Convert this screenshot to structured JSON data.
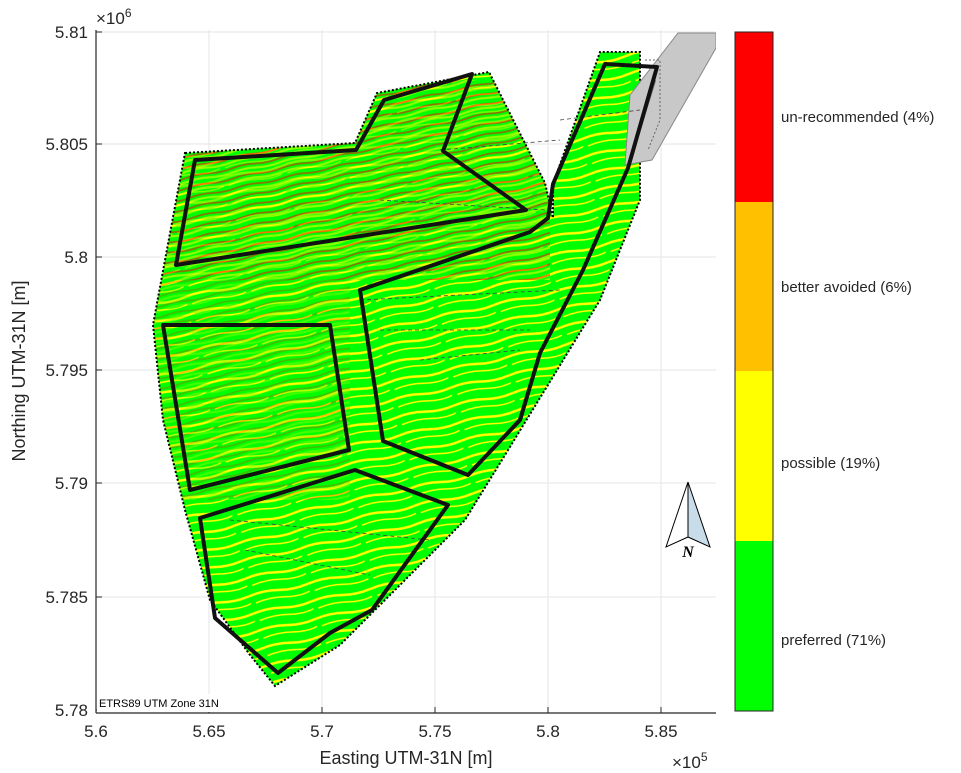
{
  "map": {
    "x_exponent_label": "×10",
    "x_exponent_power": "5",
    "y_exponent_label": "×10",
    "y_exponent_power": "6",
    "xlabel": "Easting UTM-31N [m]",
    "ylabel": "Northing UTM-31N [m]",
    "x_ticks": [
      "5.6",
      "5.65",
      "5.7",
      "5.75",
      "5.8",
      "5.85"
    ],
    "y_ticks": [
      "5.81",
      "5.805",
      "5.8",
      "5.795",
      "5.79",
      "5.785",
      "5.78"
    ],
    "crs_label": "ETRS89 UTM Zone 31N",
    "north_label": "N",
    "grid": true
  },
  "legend": {
    "items": [
      {
        "label": "un-recommended (4%)",
        "color": "#ff0000"
      },
      {
        "label": "better avoided (6%)",
        "color": "#ffc000"
      },
      {
        "label": "possible (19%)",
        "color": "#ffff00"
      },
      {
        "label": "preferred (71%)",
        "color": "#00ff00"
      }
    ]
  },
  "colors": {
    "preferred": "#00ff00",
    "possible": "#ffff00",
    "better_avoided": "#ffc000",
    "un_recommended": "#ff0000",
    "cable_corridor": "#c8c8c8",
    "boundary": "#000000"
  }
}
